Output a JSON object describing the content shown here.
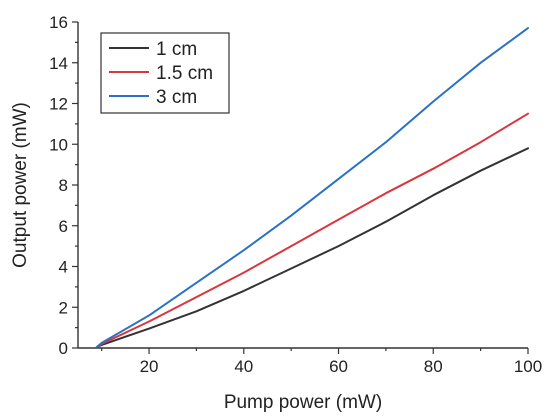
{
  "chart_data": {
    "type": "line",
    "title": "",
    "xlabel": "Pump power (mW)",
    "ylabel": "Output power (mW)",
    "xlim": [
      5,
      100
    ],
    "ylim": [
      0,
      16
    ],
    "xticks": [
      20,
      40,
      60,
      80,
      100
    ],
    "yticks": [
      0,
      2,
      4,
      6,
      8,
      10,
      12,
      14,
      16
    ],
    "grid": false,
    "legend_position": "top-left",
    "series": [
      {
        "name": "1 cm",
        "color": "#333333",
        "x": [
          9,
          10,
          20,
          30,
          40,
          50,
          60,
          70,
          80,
          90,
          100
        ],
        "y": [
          0.05,
          0.15,
          0.95,
          1.8,
          2.8,
          3.9,
          5.0,
          6.2,
          7.5,
          8.7,
          9.8
        ]
      },
      {
        "name": "1.5 cm",
        "color": "#d9363e",
        "x": [
          9,
          10,
          20,
          30,
          40,
          50,
          60,
          70,
          80,
          90,
          100
        ],
        "y": [
          0.05,
          0.2,
          1.3,
          2.5,
          3.7,
          5.0,
          6.3,
          7.6,
          8.8,
          10.1,
          11.5
        ]
      },
      {
        "name": "3 cm",
        "color": "#2b72c6",
        "x": [
          9,
          10,
          20,
          30,
          40,
          50,
          60,
          70,
          80,
          90,
          100
        ],
        "y": [
          0.05,
          0.25,
          1.6,
          3.2,
          4.8,
          6.5,
          8.3,
          10.1,
          12.1,
          14.0,
          15.7
        ]
      }
    ]
  }
}
